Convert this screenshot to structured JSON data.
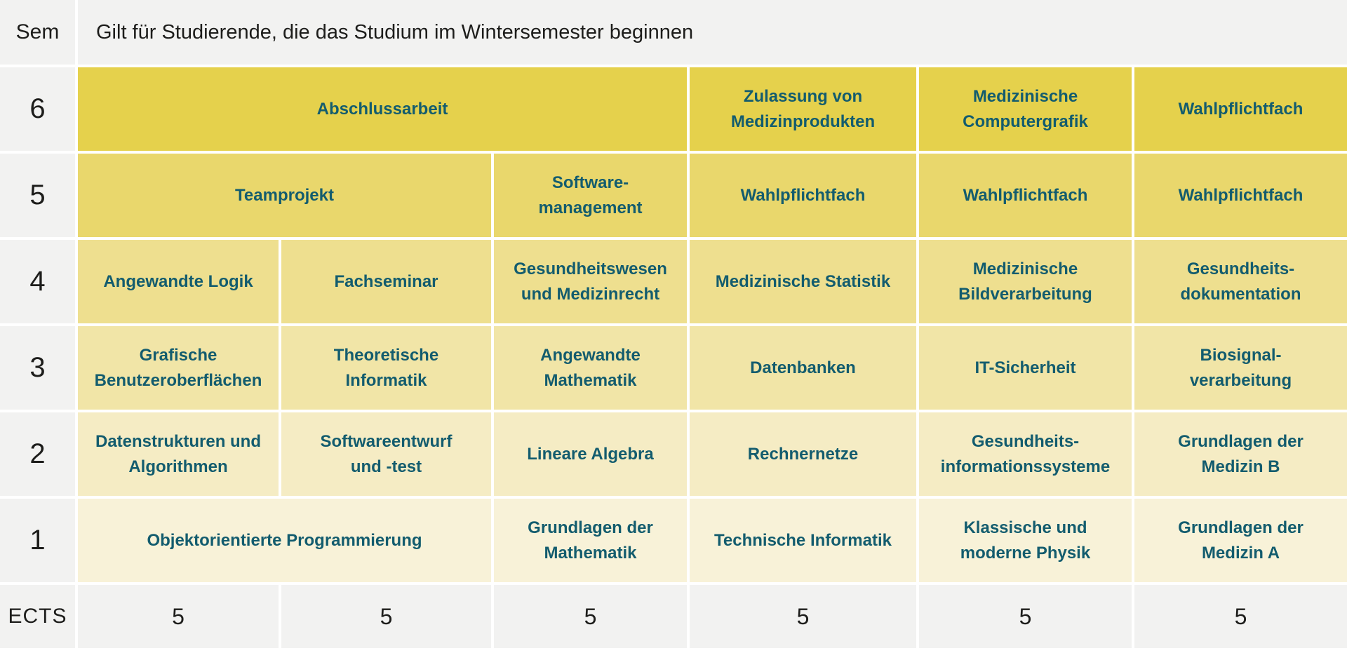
{
  "header": {
    "sem_label": "Sem",
    "title": "Gilt für Studierende, die das Studium im Wintersemester beginnen"
  },
  "colors": {
    "course_text": "#135c6e",
    "neutral_cell": "#f2f2f1",
    "semester_6": "#e5d14c",
    "semester_5": "#e9d76c",
    "semester_4": "#eedf8f",
    "semester_3": "#f1e5a7",
    "semester_2": "#f5ecc4",
    "semester_1": "#f8f2d8"
  },
  "semesters": [
    {
      "number": "6",
      "courses": [
        {
          "label": "Abschlussarbeit",
          "span": 3
        },
        {
          "label": "Zulassung von\nMedizinprodukten",
          "span": 1
        },
        {
          "label": "Medizinische\nComputergrafik",
          "span": 1
        },
        {
          "label": "Wahlpflichtfach",
          "span": 1
        }
      ]
    },
    {
      "number": "5",
      "courses": [
        {
          "label": "Teamprojekt",
          "span": 2
        },
        {
          "label": "Software-\nmanagement",
          "span": 1
        },
        {
          "label": "Wahlpflichtfach",
          "span": 1
        },
        {
          "label": "Wahlpflichtfach",
          "span": 1
        },
        {
          "label": "Wahlpflichtfach",
          "span": 1
        }
      ]
    },
    {
      "number": "4",
      "courses": [
        {
          "label": "Angewandte Logik",
          "span": 1
        },
        {
          "label": "Fachseminar",
          "span": 1
        },
        {
          "label": "Gesundheitswesen\nund Medizinrecht",
          "span": 1
        },
        {
          "label": "Medizinische Statistik",
          "span": 1
        },
        {
          "label": "Medizinische\nBildverarbeitung",
          "span": 1
        },
        {
          "label": "Gesundheits-\ndokumentation",
          "span": 1
        }
      ]
    },
    {
      "number": "3",
      "courses": [
        {
          "label": "Grafische\nBenutzeroberflächen",
          "span": 1
        },
        {
          "label": "Theoretische\nInformatik",
          "span": 1
        },
        {
          "label": "Angewandte\nMathematik",
          "span": 1
        },
        {
          "label": "Datenbanken",
          "span": 1
        },
        {
          "label": "IT-Sicherheit",
          "span": 1
        },
        {
          "label": "Biosignal-\nverarbeitung",
          "span": 1
        }
      ]
    },
    {
      "number": "2",
      "courses": [
        {
          "label": "Datenstrukturen und\nAlgorithmen",
          "span": 1
        },
        {
          "label": "Softwareentwurf\nund -test",
          "span": 1
        },
        {
          "label": "Lineare Algebra",
          "span": 1
        },
        {
          "label": "Rechnernetze",
          "span": 1
        },
        {
          "label": "Gesundheits-\ninformationssysteme",
          "span": 1
        },
        {
          "label": "Grundlagen der\nMedizin B",
          "span": 1
        }
      ]
    },
    {
      "number": "1",
      "courses": [
        {
          "label": "Objektorientierte Programmierung",
          "span": 2
        },
        {
          "label": "Grundlagen der\nMathematik",
          "span": 1
        },
        {
          "label": "Technische Informatik",
          "span": 1
        },
        {
          "label": "Klassische und\nmoderne Physik",
          "span": 1
        },
        {
          "label": "Grundlagen der\nMedizin A",
          "span": 1
        }
      ]
    }
  ],
  "ects": {
    "label": "ECTS",
    "values": [
      "5",
      "5",
      "5",
      "5",
      "5",
      "5"
    ]
  }
}
